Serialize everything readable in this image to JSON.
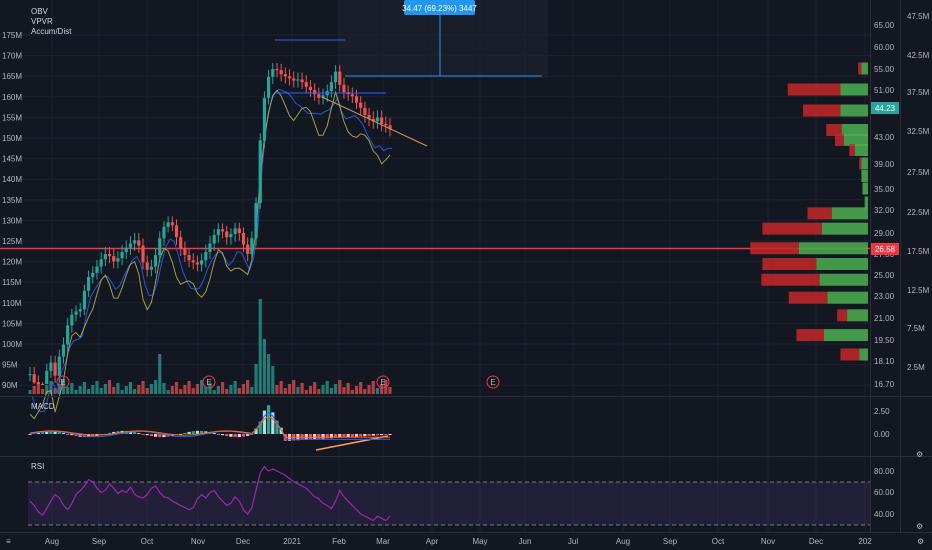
{
  "chart_data": [
    {
      "type": "candlestick",
      "panel": "price",
      "indicators": [
        "OBV",
        "VPVR",
        "Accum/Dist"
      ],
      "x_ticks": [
        "Aug",
        "Sep",
        "Oct",
        "Nov",
        "Dec",
        "2021",
        "Feb",
        "Mar",
        "Apr",
        "May",
        "Jun",
        "Jul",
        "Aug",
        "Sep",
        "Oct",
        "Nov",
        "Dec",
        "202"
      ],
      "y_left_ticks": [
        "175M",
        "170M",
        "165M",
        "160M",
        "155M",
        "150M",
        "145M",
        "140M",
        "135M",
        "130M",
        "125M",
        "120M",
        "115M",
        "110M",
        "105M",
        "100M",
        "95M",
        "90M"
      ],
      "y_left_range": [
        88,
        178
      ],
      "y_right_inner_ticks": [
        "65.00",
        "60.00",
        "55.00",
        "51.00",
        "47.00",
        "43.00",
        "39.00",
        "35.00",
        "32.00",
        "29.00",
        "27.00",
        "25.00",
        "23.00",
        "21.00",
        "19.50",
        "18.10",
        "16.70"
      ],
      "y_right_outer_ticks": [
        "47.5M",
        "42.5M",
        "37.5M",
        "32.5M",
        "27.5M",
        "22.5M",
        "17.5M",
        "12.5M",
        "7.5M",
        "2.5M"
      ],
      "last_price": "44.23",
      "horizontal_line_label": "26.58",
      "earnings_marker": "E",
      "measure_label": "34.47 (69.23%) 3447",
      "price_path": [
        17.3,
        16.8,
        16.4,
        16.0,
        17.5,
        18.0,
        17.2,
        18.4,
        19.2,
        20.5,
        21.3,
        21.6,
        21.8,
        23.5,
        24.8,
        25.2,
        25.8,
        26.5,
        27.0,
        26.8,
        26.3,
        26.6,
        27.2,
        27.6,
        28.0,
        28.3,
        27.8,
        26.2,
        25.5,
        25.8,
        26.9,
        28.5,
        29.8,
        30.4,
        30.0,
        28.6,
        27.5,
        26.9,
        26.4,
        26.2,
        26.0,
        26.4,
        27.2,
        28.0,
        28.8,
        29.5,
        29.2,
        28.6,
        28.9,
        29.6,
        29.0,
        27.9,
        27.0,
        28.5,
        33.0,
        42.5,
        49.5,
        53.5,
        55.0,
        54.8,
        54.0,
        53.6,
        53.2,
        52.8,
        53.0,
        52.5,
        51.6,
        51.0,
        50.2,
        49.5,
        50.0,
        50.8,
        52.5,
        54.5,
        52.0,
        50.6,
        50.2,
        49.8,
        48.6,
        47.6,
        46.4,
        45.8,
        45.4,
        46.0,
        45.0,
        44.8,
        44.2
      ],
      "volume_profile_buckets": [
        {
          "price": 55.0,
          "up": 6,
          "down": 3
        },
        {
          "price": 51.0,
          "up": 25,
          "down": 48
        },
        {
          "price": 47.0,
          "up": 25,
          "down": 34
        },
        {
          "price": 44.0,
          "up": 24,
          "down": 14
        },
        {
          "price": 42.5,
          "up": 22,
          "down": 8
        },
        {
          "price": 41.0,
          "up": 12,
          "down": 5
        },
        {
          "price": 39.0,
          "up": 6,
          "down": 2
        },
        {
          "price": 37.0,
          "up": 6,
          "down": 0
        },
        {
          "price": 35.0,
          "up": 5,
          "down": 0
        },
        {
          "price": 33.0,
          "up": 3,
          "down": 0
        },
        {
          "price": 31.5,
          "up": 33,
          "down": 22
        },
        {
          "price": 29.5,
          "up": 42,
          "down": 54
        },
        {
          "price": 27.5,
          "up": 63,
          "down": 44
        },
        {
          "price": 26.0,
          "up": 47,
          "down": 49
        },
        {
          "price": 24.5,
          "up": 44,
          "down": 53
        },
        {
          "price": 22.8,
          "up": 37,
          "down": 35
        },
        {
          "price": 21.2,
          "up": 19,
          "down": 9
        },
        {
          "price": 19.8,
          "up": 40,
          "down": 25
        },
        {
          "price": 18.5,
          "up": 8,
          "down": 17
        }
      ]
    },
    {
      "type": "histogram",
      "panel": "macd",
      "title": "MACD",
      "y_ticks": [
        "2.50",
        "0.00"
      ],
      "y_range": [
        -1.2,
        3.5
      ]
    },
    {
      "type": "line",
      "panel": "rsi",
      "title": "RSI",
      "y_ticks": [
        "80.00",
        "60.00",
        "40.00"
      ],
      "y_range": [
        27,
        95
      ],
      "band": [
        30,
        70
      ],
      "rsi": [
        52,
        48,
        42,
        39,
        45,
        52,
        58,
        55,
        48,
        44,
        50,
        58,
        62,
        66,
        72,
        70,
        64,
        60,
        62,
        68,
        64,
        59,
        62,
        60,
        65,
        58,
        56,
        55,
        58,
        64,
        66,
        60,
        56,
        55,
        52,
        50,
        48,
        46,
        44,
        46,
        54,
        58,
        55,
        60,
        62,
        56,
        52,
        48,
        50,
        56,
        52,
        44,
        40,
        46,
        62,
        78,
        84,
        80,
        82,
        80,
        78,
        76,
        73,
        70,
        68,
        66,
        64,
        60,
        56,
        54,
        50,
        48,
        45,
        52,
        62,
        56,
        52,
        48,
        44,
        40,
        38,
        36,
        34,
        38,
        36,
        34,
        38
      ]
    }
  ],
  "icons": {
    "gear": "gear-icon",
    "scale": "log-icon"
  }
}
